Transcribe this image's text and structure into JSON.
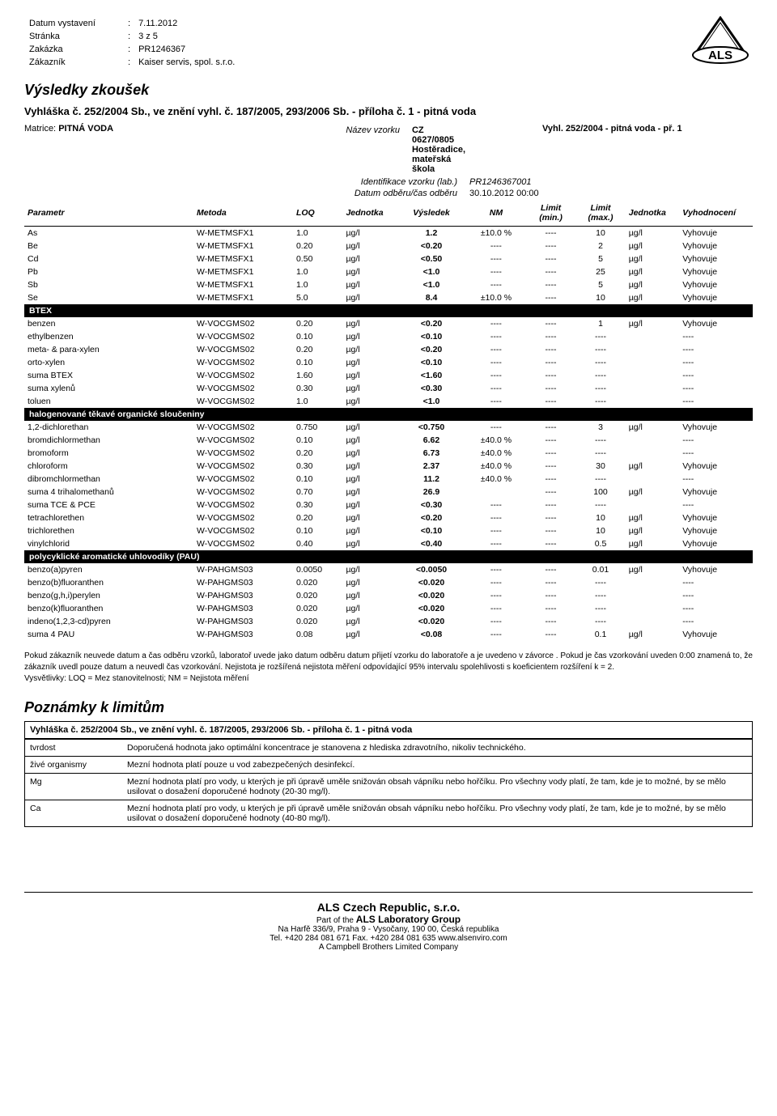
{
  "header": {
    "rows": [
      {
        "label": "Datum vystavení",
        "value": "7.11.2012"
      },
      {
        "label": "Stránka",
        "value": "3 z 5"
      },
      {
        "label": "Zakázka",
        "value": "PR1246367"
      },
      {
        "label": "Zákazník",
        "value": "Kaiser servis, spol. s.r.o."
      }
    ]
  },
  "logo": {
    "text": "ALS",
    "triangle_color": "#000000",
    "width": 80,
    "height": 60
  },
  "section_title": "Výsledky zkoušek",
  "regulation": "Vyhláška č. 252/2004 Sb., ve znění vyhl. č. 187/2005, 293/2006 Sb. - příloha č. 1 - pitná voda",
  "matrice": {
    "label": "Matrice:",
    "value": "PITNÁ VODA"
  },
  "sample_meta": [
    {
      "label": "Název vzorku",
      "value": "CZ 0627/0805 Hostěradice, mateřská škola",
      "bold": true
    },
    {
      "label": "Identifikace vzorku (lab.)",
      "value": "PR1246367001",
      "italic": true
    },
    {
      "label": "Datum odběru/čas odběru",
      "value": "30.10.2012 00:00"
    }
  ],
  "limit_standard": "Vyhl. 252/2004 - pitná voda - př. 1",
  "table": {
    "headers": {
      "param": "Parametr",
      "method": "Metoda",
      "loq": "LOQ",
      "unit": "Jednotka",
      "result": "Výsledek",
      "nm": "NM",
      "min": "Limit (min.)",
      "max": "Limit (max.)",
      "unit2": "Jednotka",
      "eval": "Vyhodnocení"
    },
    "groups": [
      {
        "title": null,
        "rows": [
          {
            "p": "As",
            "m": "W-METMSFX1",
            "loq": "1.0",
            "u": "µg/l",
            "r": "1.2",
            "nm": "±10.0 %",
            "min": "----",
            "max": "10",
            "u2": "µg/l",
            "e": "Vyhovuje"
          },
          {
            "p": "Be",
            "m": "W-METMSFX1",
            "loq": "0.20",
            "u": "µg/l",
            "r": "<0.20",
            "nm": "----",
            "min": "----",
            "max": "2",
            "u2": "µg/l",
            "e": "Vyhovuje"
          },
          {
            "p": "Cd",
            "m": "W-METMSFX1",
            "loq": "0.50",
            "u": "µg/l",
            "r": "<0.50",
            "nm": "----",
            "min": "----",
            "max": "5",
            "u2": "µg/l",
            "e": "Vyhovuje"
          },
          {
            "p": "Pb",
            "m": "W-METMSFX1",
            "loq": "1.0",
            "u": "µg/l",
            "r": "<1.0",
            "nm": "----",
            "min": "----",
            "max": "25",
            "u2": "µg/l",
            "e": "Vyhovuje"
          },
          {
            "p": "Sb",
            "m": "W-METMSFX1",
            "loq": "1.0",
            "u": "µg/l",
            "r": "<1.0",
            "nm": "----",
            "min": "----",
            "max": "5",
            "u2": "µg/l",
            "e": "Vyhovuje"
          },
          {
            "p": "Se",
            "m": "W-METMSFX1",
            "loq": "5.0",
            "u": "µg/l",
            "r": "8.4",
            "nm": "±10.0 %",
            "min": "----",
            "max": "10",
            "u2": "µg/l",
            "e": "Vyhovuje"
          }
        ]
      },
      {
        "title": "BTEX",
        "rows": [
          {
            "p": "benzen",
            "m": "W-VOCGMS02",
            "loq": "0.20",
            "u": "µg/l",
            "r": "<0.20",
            "nm": "----",
            "min": "----",
            "max": "1",
            "u2": "µg/l",
            "e": "Vyhovuje"
          },
          {
            "p": "ethylbenzen",
            "m": "W-VOCGMS02",
            "loq": "0.10",
            "u": "µg/l",
            "r": "<0.10",
            "nm": "----",
            "min": "----",
            "max": "----",
            "u2": "",
            "e": "----"
          },
          {
            "p": "meta- & para-xylen",
            "m": "W-VOCGMS02",
            "loq": "0.20",
            "u": "µg/l",
            "r": "<0.20",
            "nm": "----",
            "min": "----",
            "max": "----",
            "u2": "",
            "e": "----"
          },
          {
            "p": "orto-xylen",
            "m": "W-VOCGMS02",
            "loq": "0.10",
            "u": "µg/l",
            "r": "<0.10",
            "nm": "----",
            "min": "----",
            "max": "----",
            "u2": "",
            "e": "----"
          },
          {
            "p": "suma BTEX",
            "m": "W-VOCGMS02",
            "loq": "1.60",
            "u": "µg/l",
            "r": "<1.60",
            "nm": "----",
            "min": "----",
            "max": "----",
            "u2": "",
            "e": "----"
          },
          {
            "p": "suma xylenů",
            "m": "W-VOCGMS02",
            "loq": "0.30",
            "u": "µg/l",
            "r": "<0.30",
            "nm": "----",
            "min": "----",
            "max": "----",
            "u2": "",
            "e": "----"
          },
          {
            "p": "toluen",
            "m": "W-VOCGMS02",
            "loq": "1.0",
            "u": "µg/l",
            "r": "<1.0",
            "nm": "----",
            "min": "----",
            "max": "----",
            "u2": "",
            "e": "----"
          }
        ]
      },
      {
        "title": "halogenované těkavé organické sloučeniny",
        "rows": [
          {
            "p": "1,2-dichlorethan",
            "m": "W-VOCGMS02",
            "loq": "0.750",
            "u": "µg/l",
            "r": "<0.750",
            "nm": "----",
            "min": "----",
            "max": "3",
            "u2": "µg/l",
            "e": "Vyhovuje"
          },
          {
            "p": "bromdichlormethan",
            "m": "W-VOCGMS02",
            "loq": "0.10",
            "u": "µg/l",
            "r": "6.62",
            "nm": "±40.0 %",
            "min": "----",
            "max": "----",
            "u2": "",
            "e": "----"
          },
          {
            "p": "bromoform",
            "m": "W-VOCGMS02",
            "loq": "0.20",
            "u": "µg/l",
            "r": "6.73",
            "nm": "±40.0 %",
            "min": "----",
            "max": "----",
            "u2": "",
            "e": "----"
          },
          {
            "p": "chloroform",
            "m": "W-VOCGMS02",
            "loq": "0.30",
            "u": "µg/l",
            "r": "2.37",
            "nm": "±40.0 %",
            "min": "----",
            "max": "30",
            "u2": "µg/l",
            "e": "Vyhovuje"
          },
          {
            "p": "dibromchlormethan",
            "m": "W-VOCGMS02",
            "loq": "0.10",
            "u": "µg/l",
            "r": "11.2",
            "nm": "±40.0 %",
            "min": "----",
            "max": "----",
            "u2": "",
            "e": "----"
          },
          {
            "p": "suma 4 trihalomethanů",
            "m": "W-VOCGMS02",
            "loq": "0.70",
            "u": "µg/l",
            "r": "26.9",
            "nm": "",
            "min": "----",
            "max": "100",
            "u2": "µg/l",
            "e": "Vyhovuje"
          },
          {
            "p": "suma TCE & PCE",
            "m": "W-VOCGMS02",
            "loq": "0.30",
            "u": "µg/l",
            "r": "<0.30",
            "nm": "----",
            "min": "----",
            "max": "----",
            "u2": "",
            "e": "----"
          },
          {
            "p": "tetrachlorethen",
            "m": "W-VOCGMS02",
            "loq": "0.20",
            "u": "µg/l",
            "r": "<0.20",
            "nm": "----",
            "min": "----",
            "max": "10",
            "u2": "µg/l",
            "e": "Vyhovuje"
          },
          {
            "p": "trichlorethen",
            "m": "W-VOCGMS02",
            "loq": "0.10",
            "u": "µg/l",
            "r": "<0.10",
            "nm": "----",
            "min": "----",
            "max": "10",
            "u2": "µg/l",
            "e": "Vyhovuje"
          },
          {
            "p": "vinylchlorid",
            "m": "W-VOCGMS02",
            "loq": "0.40",
            "u": "µg/l",
            "r": "<0.40",
            "nm": "----",
            "min": "----",
            "max": "0.5",
            "u2": "µg/l",
            "e": "Vyhovuje"
          }
        ]
      },
      {
        "title": "polycyklické aromatické uhlovodíky (PAU)",
        "rows": [
          {
            "p": "benzo(a)pyren",
            "m": "W-PAHGMS03",
            "loq": "0.0050",
            "u": "µg/l",
            "r": "<0.0050",
            "nm": "----",
            "min": "----",
            "max": "0.01",
            "u2": "µg/l",
            "e": "Vyhovuje"
          },
          {
            "p": "benzo(b)fluoranthen",
            "m": "W-PAHGMS03",
            "loq": "0.020",
            "u": "µg/l",
            "r": "<0.020",
            "nm": "----",
            "min": "----",
            "max": "----",
            "u2": "",
            "e": "----"
          },
          {
            "p": "benzo(g,h,i)perylen",
            "m": "W-PAHGMS03",
            "loq": "0.020",
            "u": "µg/l",
            "r": "<0.020",
            "nm": "----",
            "min": "----",
            "max": "----",
            "u2": "",
            "e": "----"
          },
          {
            "p": "benzo(k)fluoranthen",
            "m": "W-PAHGMS03",
            "loq": "0.020",
            "u": "µg/l",
            "r": "<0.020",
            "nm": "----",
            "min": "----",
            "max": "----",
            "u2": "",
            "e": "----"
          },
          {
            "p": "indeno(1,2,3-cd)pyren",
            "m": "W-PAHGMS03",
            "loq": "0.020",
            "u": "µg/l",
            "r": "<0.020",
            "nm": "----",
            "min": "----",
            "max": "----",
            "u2": "",
            "e": "----"
          },
          {
            "p": "suma 4 PAU",
            "m": "W-PAHGMS03",
            "loq": "0.08",
            "u": "µg/l",
            "r": "<0.08",
            "nm": "----",
            "min": "----",
            "max": "0.1",
            "u2": "µg/l",
            "e": "Vyhovuje"
          }
        ]
      }
    ]
  },
  "disclaimer": [
    "Pokud zákazník neuvede datum a čas odběru vzorků, laboratoř uvede jako datum odběru datum přijetí vzorku do laboratoře a je uvedeno v závorce . Pokud je čas vzorkování uveden 0:00 znamená to, že zákazník uvedl pouze datum a neuvedl čas vzorkování. Nejistota je rozšířená nejistota měření odpovídající 95% intervalu spolehlivosti s koeficientem rozšíření k = 2.",
    "Vysvětlivky: LOQ = Mez stanovitelnosti;  NM = Nejistota měření"
  ],
  "notes": {
    "title": "Poznámky k limitům",
    "header": "Vyhláška č. 252/2004 Sb., ve znění vyhl. č. 187/2005, 293/2006 Sb. - příloha č. 1 - pitná voda",
    "rows": [
      {
        "k": "tvrdost",
        "v": "Doporučená hodnota jako optimální koncentrace je stanovena z hlediska zdravotního, nikoliv technického."
      },
      {
        "k": "živé organismy",
        "v": "Mezní hodnota platí pouze u vod zabezpečených desinfekcí."
      },
      {
        "k": "Mg",
        "v": "Mezní hodnota platí pro vody, u kterých je při úpravě uměle snižován obsah vápníku nebo hořčíku. Pro všechny vody platí, že tam, kde je to možné, by se mělo usilovat o dosažení doporučené hodnoty (20-30 mg/l)."
      },
      {
        "k": "Ca",
        "v": "Mezní hodnota platí pro vody, u kterých je při úpravě uměle snižován obsah vápníku nebo hořčíku. Pro všechny vody platí, že tam, kde je to možné, by se mělo usilovat o dosažení doporučené hodnoty (40-80 mg/l)."
      }
    ]
  },
  "footer": {
    "company": "ALS Czech Republic, s.r.o.",
    "partof": "Part of the",
    "group": "ALS Laboratory Group",
    "addr": "Na Harfě 336/9, Praha 9 - Vysočany, 190 00, Česká republika",
    "tel": "Tel. +420 284 081 671 Fax. +420 284 081 635 www.alsenviro.com",
    "campbell": "A Campbell Brothers Limited Company"
  }
}
